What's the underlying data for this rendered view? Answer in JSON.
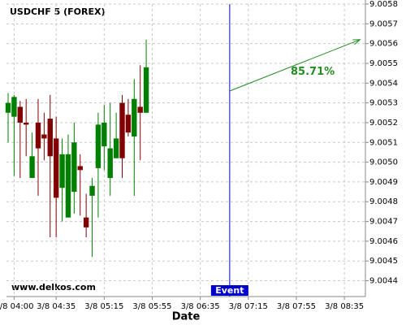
{
  "chart_data": {
    "type": "candlestick",
    "title": "USDCHF 5 (FOREX)",
    "watermark": "www.delkos.com",
    "x_label": "Date",
    "open": [
      9.00525,
      9.00523,
      9.00528,
      9.0052,
      9.00492,
      9.0052,
      9.00514,
      9.00522,
      9.00512,
      9.00487,
      9.00472,
      9.00485,
      9.00498,
      9.00472,
      9.00483,
      9.00497,
      9.00508,
      9.00492,
      9.00502,
      9.0053,
      9.00524,
      9.00513,
      9.00528,
      9.00525
    ],
    "high": [
      9.00535,
      9.00534,
      9.00531,
      9.00532,
      9.00515,
      9.00532,
      9.00525,
      9.00534,
      9.00523,
      9.00512,
      9.00514,
      9.0052,
      9.00504,
      9.00484,
      9.00492,
      9.00525,
      9.00529,
      9.0053,
      9.00525,
      9.00534,
      9.00532,
      9.00542,
      9.00549,
      9.00562
    ],
    "low": [
      9.0051,
      9.00493,
      9.00492,
      9.00503,
      9.00492,
      9.00483,
      9.00501,
      9.00462,
      9.00462,
      9.0047,
      9.00472,
      9.00474,
      9.00473,
      9.00462,
      9.00452,
      9.00472,
      9.00496,
      9.00483,
      9.00502,
      9.00492,
      9.00513,
      9.00483,
      9.00501,
      9.00525
    ],
    "close": [
      9.0053,
      9.00533,
      9.0052,
      9.00519,
      9.00503,
      9.00507,
      9.00512,
      9.00503,
      9.00482,
      9.00504,
      9.00504,
      9.0051,
      9.00496,
      9.00467,
      9.00488,
      9.00519,
      9.0052,
      9.00507,
      9.00512,
      9.00502,
      9.00515,
      9.00532,
      9.00525,
      9.00548
    ],
    "up_color": "#008000",
    "down_color": "#800000",
    "xlim": [
      -0.27,
      59.5
    ],
    "xticks": [
      {
        "value": 1,
        "label": "3/8 04:00"
      },
      {
        "value": 8,
        "label": "3/8 04:35"
      },
      {
        "value": 16,
        "label": "3/8 05:15"
      },
      {
        "value": 24,
        "label": "3/8 05:55"
      },
      {
        "value": 32,
        "label": "3/8 06:35"
      },
      {
        "value": 40,
        "label": "3/8 07:15"
      },
      {
        "value": 48,
        "label": "3/8 07:55"
      },
      {
        "value": 56,
        "label": "3/8 08:35"
      }
    ],
    "ylim": [
      9.00432,
      9.0058
    ],
    "yticks": [
      9.0044,
      9.0045,
      9.0046,
      9.0047,
      9.0048,
      9.0049,
      {
        "value": 9.005,
        "label": "9.0050"
      },
      9.0051,
      9.0052,
      9.0053,
      9.0054,
      9.0055,
      9.0056,
      9.0057,
      9.0058
    ],
    "grid": true,
    "event": {
      "x": 36.9,
      "label": "Event",
      "color": "#0000cc"
    },
    "prediction": {
      "x": [
        36.9,
        58.6
      ],
      "y": [
        9.00536,
        9.00562
      ],
      "label": "85.71%",
      "color": "#228b22"
    }
  }
}
